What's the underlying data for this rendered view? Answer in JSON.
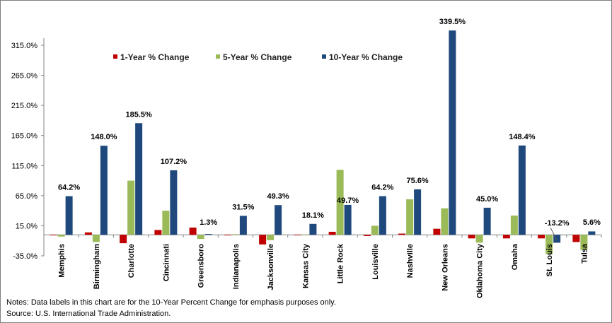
{
  "chart_data": {
    "type": "bar",
    "title": "",
    "xlabel": "",
    "ylabel": "",
    "ylim": [
      -35,
      340
    ],
    "y_ticks": [
      -35,
      15,
      65,
      115,
      165,
      215,
      265,
      315
    ],
    "y_tick_labels": [
      "-35.0%",
      "15.0%",
      "65.0%",
      "115.0%",
      "165.0%",
      "215.0%",
      "265.0%",
      "315.0%"
    ],
    "categories": [
      "Memphis",
      "Birmingham",
      "Charlotte",
      "Cincinnati",
      "Greensboro",
      "Indianapolis",
      "Jacksonville",
      "Kansas City",
      "Little Rock",
      "Louisville",
      "Nashville",
      "New Orleans",
      "Oklahoma City",
      "Omaha",
      "St. Louis",
      "Tulsa"
    ],
    "series": [
      {
        "name": "1-Year % Change",
        "color": "#c00000",
        "values": [
          -1,
          4,
          -14,
          8,
          12,
          -1,
          -16,
          0,
          5,
          -2,
          2,
          10,
          -6,
          -6,
          -6,
          -12
        ]
      },
      {
        "name": "5-Year % Change",
        "color": "#9bbb59",
        "values": [
          -3,
          -12,
          90,
          40,
          -7,
          1,
          -9,
          0,
          108,
          15,
          59,
          44,
          -13,
          32,
          -32,
          -25
        ]
      },
      {
        "name": "10-Year % Change",
        "color": "#1f497d",
        "values": [
          64.2,
          148.0,
          185.5,
          107.2,
          1.3,
          31.5,
          49.3,
          18.1,
          49.7,
          64.2,
          75.6,
          339.5,
          45.0,
          148.4,
          -13.2,
          5.6
        ]
      }
    ],
    "data_labels": [
      "64.2%",
      "148.0%",
      "185.5%",
      "107.2%",
      "1.3%",
      "31.5%",
      "49.3%",
      "18.1%",
      "49.7%",
      "64.2%",
      "75.6%",
      "339.5%",
      "45.0%",
      "148.4%",
      "-13.2%",
      "5.6%"
    ],
    "legend_position": "top-left",
    "gridlines": false
  },
  "notes": {
    "line1": "Notes: Data labels in this chart are for the 10-Year Percent Change for emphasis purposes only.",
    "line2": "Source:  U.S. International Trade Administration."
  }
}
